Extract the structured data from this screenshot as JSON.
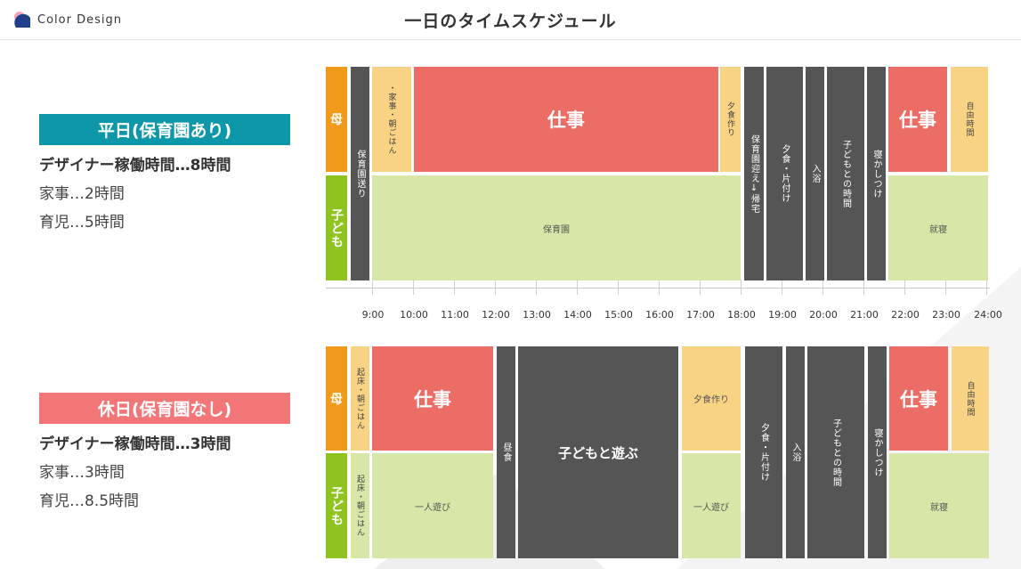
{
  "header": {
    "brand": "Color Design",
    "title": "一日のタイムスケジュール"
  },
  "colors": {
    "orange": "#f19a1a",
    "green": "#8fc31f",
    "salmon": "#ec6d66",
    "light_orange": "#f9d384",
    "light_green": "#d6e7a7",
    "dark_gray": "#555555",
    "teal": "#0d97a8",
    "pink": "#f27678"
  },
  "weekday_summary": {
    "badge": "平日(保育園あり)",
    "line1": "デザイナー稼働時間…8時間",
    "line2": "家事…2時間",
    "line3": "育児…5時間"
  },
  "holiday_summary": {
    "badge": "休日(保育園なし)",
    "line1": "デザイナー稼働時間…3時間",
    "line2": "家事…3時間",
    "line3": "育児…8.5時間"
  },
  "time_labels": [
    "9:00",
    "10:00",
    "11:00",
    "12:00",
    "13:00",
    "14:00",
    "15:00",
    "16:00",
    "17:00",
    "18:00",
    "19:00",
    "20:00",
    "21:00",
    "22:00",
    "23:00",
    "24:00"
  ],
  "weekday": {
    "mother_label": "母",
    "child_label": "子ども",
    "dropoff": "保育園送り",
    "chores": "・家事・朝ごはん",
    "work": "仕事",
    "dinner_prep": "夕食作り",
    "pickup": "保育園迎え↓帰宅",
    "dinner": "夕食・片付け",
    "bath": "入浴",
    "child_time": "子どもとの時間",
    "bedtime": "寝かしつけ",
    "work2": "仕事",
    "free": "自由時間",
    "nursery": "保育園",
    "sleep": "就寝"
  },
  "holiday": {
    "mother_label": "母",
    "child_label": "子ども",
    "wake_mother": "起床・朝ごはん",
    "wake_child": "起床・朝ごはん",
    "work": "仕事",
    "alone_play": "一人遊び",
    "lunch": "昼食",
    "play": "子どもと遊ぶ",
    "dinner_prep": "夕食作り",
    "alone_play2": "一人遊び",
    "dinner": "夕食・片付け",
    "bath": "入浴",
    "child_time": "子どもとの時間",
    "bedtime": "寝かしつけ",
    "work2": "仕事",
    "free": "自由時間",
    "sleep": "就寝"
  }
}
